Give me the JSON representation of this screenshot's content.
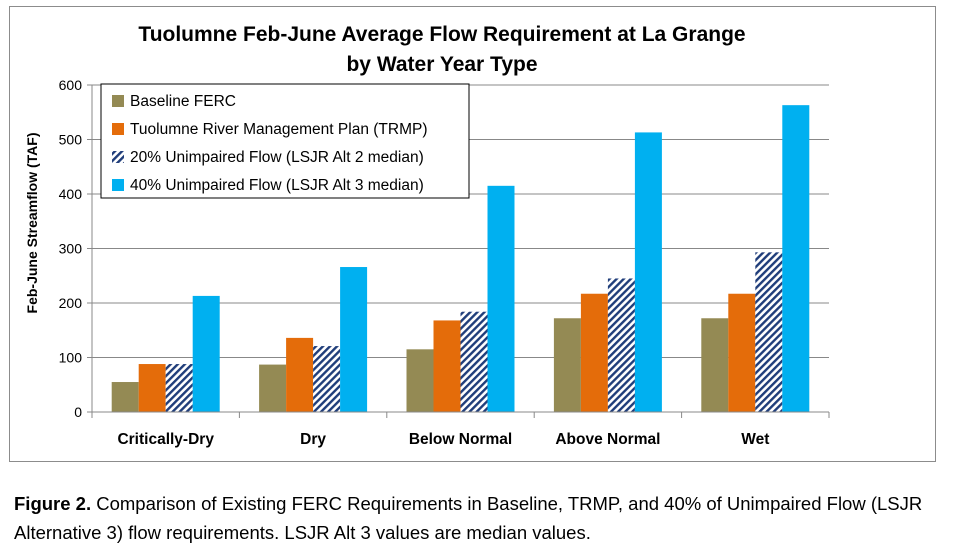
{
  "chart_data": {
    "type": "bar",
    "title_lines": [
      "Tuolumne Feb-June Average Flow Requirement at La Grange",
      "by Water Year Type"
    ],
    "ylabel": "Feb-June Streamflow (TAF)",
    "xlabel": "",
    "ylim": [
      0,
      600
    ],
    "yticks": [
      0,
      100,
      200,
      300,
      400,
      500,
      600
    ],
    "grid": true,
    "legend_position": "top-left",
    "categories": [
      "Critically-Dry",
      "Dry",
      "Below Normal",
      "Above Normal",
      "Wet"
    ],
    "series": [
      {
        "name": "Baseline FERC",
        "color": "#948a54",
        "pattern": "solid",
        "values": [
          55,
          87,
          115,
          172,
          172
        ]
      },
      {
        "name": "Tuolumne River Management Plan (TRMP)",
        "color": "#e46c0a",
        "pattern": "solid",
        "values": [
          88,
          136,
          168,
          217,
          217
        ]
      },
      {
        "name": "20% Unimpaired Flow (LSJR Alt 2 median)",
        "color": "#1f3d7a",
        "pattern": "hatch",
        "values": [
          88,
          121,
          184,
          245,
          293
        ]
      },
      {
        "name": "40% Unimpaired Flow (LSJR Alt 3 median)",
        "color": "#00b0f0",
        "pattern": "solid",
        "values": [
          213,
          266,
          415,
          513,
          563
        ]
      }
    ]
  },
  "caption": {
    "label": "Figure 2.",
    "text": " Comparison of Existing FERC Requirements in Baseline, TRMP, and 40% of Unimpaired Flow (LSJR Alternative 3) flow requirements. LSJR Alt 3 values are median values."
  }
}
